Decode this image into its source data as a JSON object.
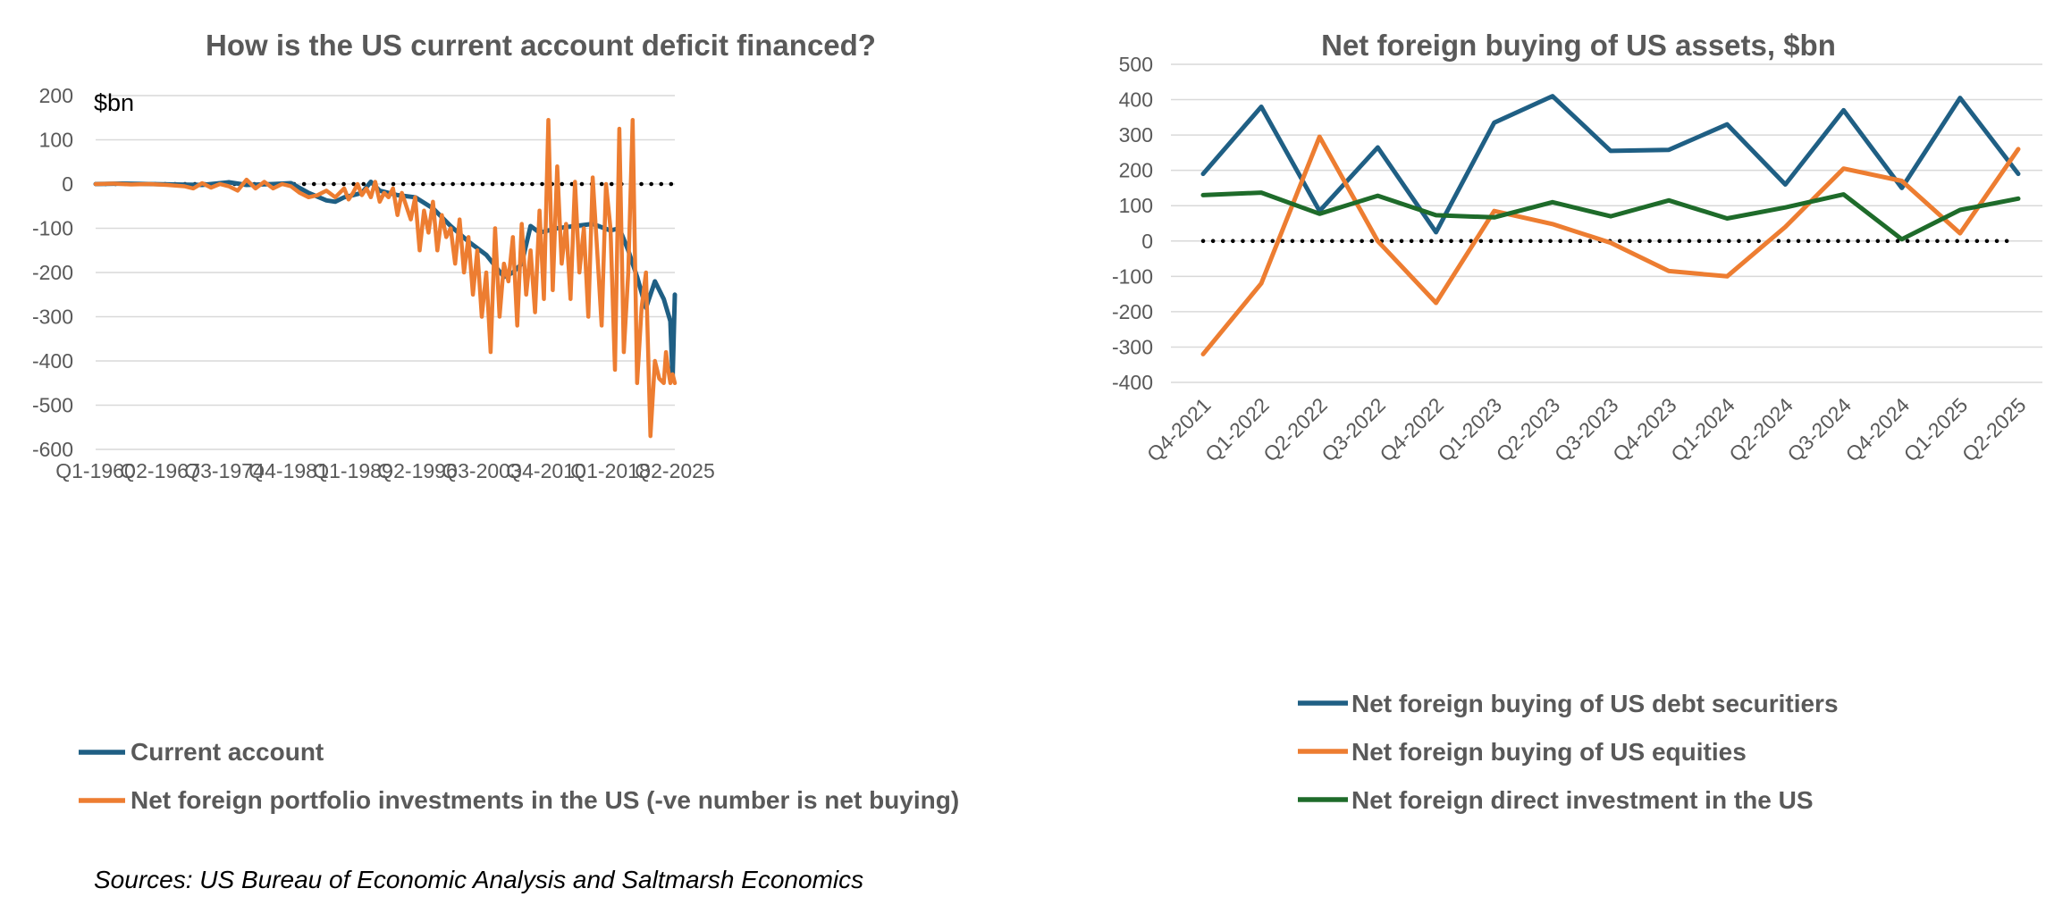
{
  "colors": {
    "blue": "#1f5f84",
    "orange": "#ed7d31",
    "green": "#1e6b2a",
    "zero": "#000000"
  },
  "source_note": "Sources: US Bureau of Economic Analysis and Saltmarsh Economics",
  "chart_data": [
    {
      "type": "line",
      "title": "How is the US current account deficit financed?",
      "ylabel": "$bn",
      "ylim": [
        -600,
        200
      ],
      "y_ticks": [
        "200",
        "100",
        "0",
        "-100",
        "-200",
        "-300",
        "-400",
        "-500",
        "-600"
      ],
      "x_tick_labels": [
        "Q1-1960",
        "Q2-1967",
        "Q3-1974",
        "Q4-1981",
        "Q1-1989",
        "Q2-1996",
        "Q3-2003",
        "Q4-2010",
        "Q1-2018",
        "Q2-2025"
      ],
      "x_range": [
        1960.0,
        2025.25
      ],
      "grid": true,
      "legend_position": "bottom",
      "zero_line": "dotted",
      "series": [
        {
          "name": "Current account",
          "color": "#1f5f84",
          "x": [
            1960,
            1963,
            1966,
            1969,
            1972,
            1975,
            1977,
            1980,
            1982,
            1984,
            1986,
            1987,
            1988,
            1989,
            1990,
            1991,
            1992,
            1994,
            1996,
            1998,
            2000,
            2002,
            2004,
            2006,
            2007,
            2008,
            2009,
            2010,
            2012,
            2014,
            2016,
            2018,
            2019,
            2020,
            2021,
            2022,
            2023,
            2024,
            2024.75,
            2025,
            2025.25
          ],
          "y": [
            0,
            1,
            0,
            -1,
            -2,
            4,
            -2,
            0,
            2,
            -20,
            -37,
            -40,
            -30,
            -25,
            -20,
            5,
            -15,
            -25,
            -30,
            -55,
            -95,
            -130,
            -160,
            -210,
            -200,
            -180,
            -95,
            -110,
            -100,
            -95,
            -90,
            -105,
            -100,
            -150,
            -210,
            -280,
            -220,
            -260,
            -310,
            -440,
            -250
          ]
        },
        {
          "name": "Net foreign portfolio investments in the US (-ve number is net buying)",
          "color": "#ed7d31",
          "x": [
            1960,
            1962,
            1964,
            1966,
            1968,
            1970,
            1971,
            1972,
            1973,
            1974,
            1975,
            1976,
            1977,
            1978,
            1979,
            1980,
            1981,
            1982,
            1983,
            1984,
            1985,
            1986,
            1987,
            1988,
            1988.5,
            1989,
            1989.5,
            1990,
            1990.5,
            1991,
            1991.5,
            1992,
            1992.5,
            1993,
            1993.5,
            1994,
            1994.5,
            1995,
            1995.5,
            1996,
            1996.5,
            1997,
            1997.5,
            1998,
            1998.5,
            1999,
            1999.5,
            2000,
            2000.5,
            2001,
            2001.5,
            2002,
            2002.5,
            2003,
            2003.5,
            2004,
            2004.5,
            2005,
            2005.5,
            2006,
            2006.5,
            2007,
            2007.5,
            2008,
            2008.5,
            2009,
            2009.5,
            2010,
            2010.5,
            2011,
            2011.5,
            2012,
            2012.5,
            2013,
            2013.5,
            2014,
            2014.5,
            2015,
            2015.5,
            2016,
            2016.5,
            2017,
            2017.5,
            2018,
            2018.5,
            2019,
            2019.5,
            2020,
            2020.5,
            2021,
            2021.5,
            2022,
            2022.5,
            2023,
            2023.5,
            2024,
            2024.25,
            2024.5,
            2024.75,
            2025,
            2025.25
          ],
          "y": [
            0,
            1,
            -1,
            0,
            -2,
            -5,
            -10,
            2,
            -8,
            0,
            -5,
            -15,
            10,
            -10,
            5,
            -10,
            0,
            -5,
            -20,
            -30,
            -25,
            -15,
            -30,
            -10,
            -35,
            -20,
            0,
            -25,
            -10,
            -30,
            5,
            -40,
            -20,
            -30,
            -10,
            -70,
            -20,
            -50,
            -80,
            -30,
            -150,
            -60,
            -110,
            -40,
            -150,
            -70,
            -120,
            -100,
            -180,
            -80,
            -200,
            -120,
            -250,
            -150,
            -300,
            -200,
            -380,
            -100,
            -300,
            -180,
            -220,
            -120,
            -320,
            -90,
            -250,
            -150,
            -290,
            -60,
            -260,
            145,
            -240,
            40,
            -180,
            -90,
            -260,
            5,
            -200,
            -100,
            -300,
            15,
            -150,
            -320,
            0,
            -100,
            -420,
            125,
            -380,
            -200,
            145,
            -450,
            -280,
            -200,
            -570,
            -400,
            -440,
            -450,
            -380,
            -420,
            -450,
            -430,
            -450
          ]
        }
      ]
    },
    {
      "type": "line",
      "title": "Net foreign buying of US assets, $bn",
      "ylim": [
        -400,
        500
      ],
      "y_ticks": [
        "500",
        "400",
        "300",
        "200",
        "100",
        "0",
        "-100",
        "-200",
        "-300",
        "-400"
      ],
      "categories": [
        "Q4-2021",
        "Q1-2022",
        "Q2-2022",
        "Q3-2022",
        "Q4-2022",
        "Q1-2023",
        "Q2-2023",
        "Q3-2023",
        "Q4-2023",
        "Q1-2024",
        "Q2-2024",
        "Q3-2024",
        "Q4-2024",
        "Q1-2025",
        "Q2-2025"
      ],
      "grid": true,
      "legend_position": "bottom",
      "zero_line": "dotted",
      "series": [
        {
          "name": "Net foreign buying of US debt securitiers",
          "color": "#1f5f84",
          "values": [
            190,
            380,
            85,
            265,
            25,
            335,
            410,
            255,
            258,
            330,
            160,
            370,
            150,
            405,
            190
          ]
        },
        {
          "name": "Net foreign buying of US equities",
          "color": "#ed7d31",
          "values": [
            -320,
            -120,
            295,
            0,
            -175,
            85,
            48,
            -5,
            -85,
            -100,
            40,
            205,
            170,
            22,
            260
          ]
        },
        {
          "name": "Net foreign direct investment in the US",
          "color": "#1e6b2a",
          "values": [
            130,
            137,
            77,
            128,
            73,
            67,
            110,
            70,
            115,
            64,
            95,
            132,
            5,
            88,
            120
          ]
        }
      ]
    }
  ]
}
